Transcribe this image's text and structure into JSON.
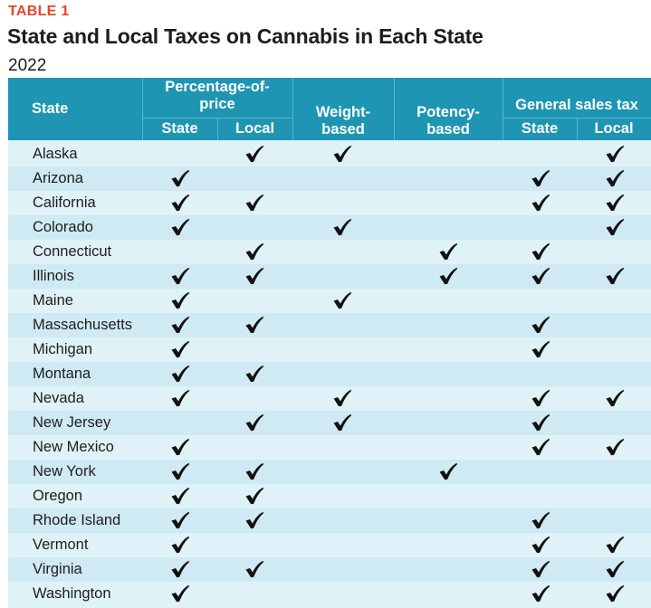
{
  "table_label": "TABLE 1",
  "title": "State and Local Taxes on Cannabis in Each State",
  "subtitle": "2022",
  "headers": {
    "state": "State",
    "percentage_group_line1": "Percentage-of-",
    "percentage_group_line2": "price",
    "pct_state": "State",
    "pct_local": "Local",
    "weight_line1": "Weight-",
    "weight_line2": "based",
    "potency_line1": "Potency-",
    "potency_line2": "based",
    "sales_group": "General sales tax",
    "sales_state": "State",
    "sales_local": "Local"
  },
  "columns": [
    "pct_state",
    "pct_local",
    "weight",
    "potency",
    "sales_state",
    "sales_local"
  ],
  "check_icon": "checkmark-icon",
  "colors": {
    "header": "#1e95b3",
    "body": "#dff2f7",
    "label": "#e8452c"
  },
  "rows": [
    {
      "state": "Alaska",
      "pct_state": false,
      "pct_local": true,
      "weight": true,
      "potency": false,
      "sales_state": false,
      "sales_local": true
    },
    {
      "state": "Arizona",
      "pct_state": true,
      "pct_local": false,
      "weight": false,
      "potency": false,
      "sales_state": true,
      "sales_local": true
    },
    {
      "state": "California",
      "pct_state": true,
      "pct_local": true,
      "weight": false,
      "potency": false,
      "sales_state": true,
      "sales_local": true
    },
    {
      "state": "Colorado",
      "pct_state": true,
      "pct_local": false,
      "weight": true,
      "potency": false,
      "sales_state": false,
      "sales_local": true
    },
    {
      "state": "Connecticut",
      "pct_state": false,
      "pct_local": true,
      "weight": false,
      "potency": true,
      "sales_state": true,
      "sales_local": false
    },
    {
      "state": "Illinois",
      "pct_state": true,
      "pct_local": true,
      "weight": false,
      "potency": true,
      "sales_state": true,
      "sales_local": true
    },
    {
      "state": "Maine",
      "pct_state": true,
      "pct_local": false,
      "weight": true,
      "potency": false,
      "sales_state": false,
      "sales_local": false
    },
    {
      "state": "Massachusetts",
      "pct_state": true,
      "pct_local": true,
      "weight": false,
      "potency": false,
      "sales_state": true,
      "sales_local": false
    },
    {
      "state": "Michigan",
      "pct_state": true,
      "pct_local": false,
      "weight": false,
      "potency": false,
      "sales_state": true,
      "sales_local": false
    },
    {
      "state": "Montana",
      "pct_state": true,
      "pct_local": true,
      "weight": false,
      "potency": false,
      "sales_state": false,
      "sales_local": false
    },
    {
      "state": "Nevada",
      "pct_state": true,
      "pct_local": false,
      "weight": true,
      "potency": false,
      "sales_state": true,
      "sales_local": true
    },
    {
      "state": "New Jersey",
      "pct_state": false,
      "pct_local": true,
      "weight": true,
      "potency": false,
      "sales_state": true,
      "sales_local": false
    },
    {
      "state": "New Mexico",
      "pct_state": true,
      "pct_local": false,
      "weight": false,
      "potency": false,
      "sales_state": true,
      "sales_local": true
    },
    {
      "state": "New York",
      "pct_state": true,
      "pct_local": true,
      "weight": false,
      "potency": true,
      "sales_state": false,
      "sales_local": false
    },
    {
      "state": "Oregon",
      "pct_state": true,
      "pct_local": true,
      "weight": false,
      "potency": false,
      "sales_state": false,
      "sales_local": false
    },
    {
      "state": "Rhode Island",
      "pct_state": true,
      "pct_local": true,
      "weight": false,
      "potency": false,
      "sales_state": true,
      "sales_local": false
    },
    {
      "state": "Vermont",
      "pct_state": true,
      "pct_local": false,
      "weight": false,
      "potency": false,
      "sales_state": true,
      "sales_local": true
    },
    {
      "state": "Virginia",
      "pct_state": true,
      "pct_local": true,
      "weight": false,
      "potency": false,
      "sales_state": true,
      "sales_local": true
    },
    {
      "state": "Washington",
      "pct_state": true,
      "pct_local": false,
      "weight": false,
      "potency": false,
      "sales_state": true,
      "sales_local": true
    }
  ]
}
